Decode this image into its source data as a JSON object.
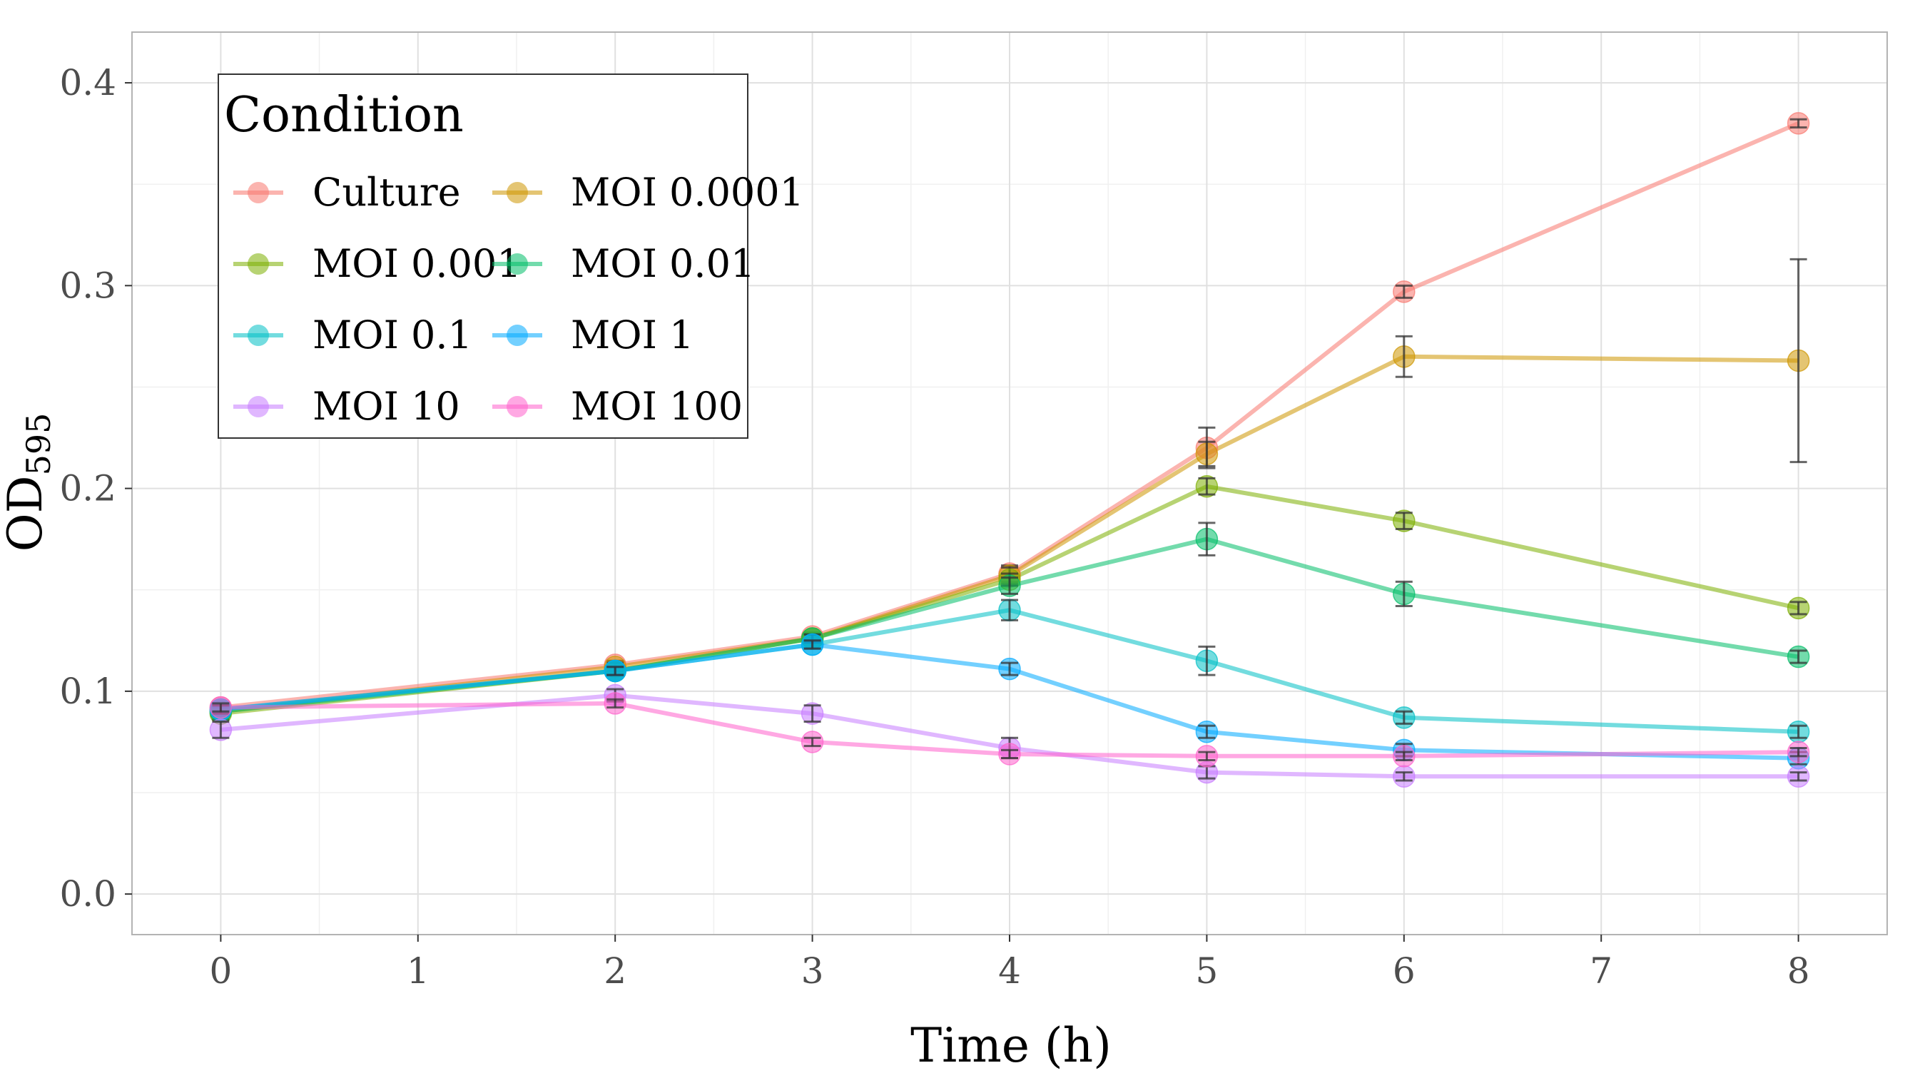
{
  "chart_data": {
    "type": "line",
    "xlabel": "Time (h)",
    "ylabel": "OD",
    "ylabel_sub": "595",
    "xlim": [
      -0.45,
      8.45
    ],
    "ylim": [
      -0.02,
      0.425
    ],
    "x_ticks": [
      0,
      1,
      2,
      3,
      4,
      5,
      6,
      7,
      8
    ],
    "y_ticks": [
      0.0,
      0.1,
      0.2,
      0.3,
      0.4
    ],
    "y_tick_labels": [
      "0.0",
      "0.1",
      "0.2",
      "0.3",
      "0.4"
    ],
    "grid": true,
    "legend": {
      "title": "Condition",
      "position": "top-left",
      "columns": 2
    },
    "x": [
      0,
      2,
      3,
      4,
      5,
      6,
      8
    ],
    "series": [
      {
        "name": "Culture",
        "color": "#F8766D",
        "values": [
          0.092,
          0.113,
          0.127,
          0.158,
          0.22,
          0.297,
          0.38
        ],
        "errors": [
          0.002,
          0.002,
          0.002,
          0.004,
          0.01,
          0.003,
          0.002
        ]
      },
      {
        "name": "MOI 0.0001",
        "color": "#CD9600",
        "values": [
          0.09,
          0.112,
          0.126,
          0.157,
          0.217,
          0.265,
          0.263
        ],
        "errors": [
          0.002,
          0.002,
          0.002,
          0.004,
          0.006,
          0.01,
          0.05
        ]
      },
      {
        "name": "MOI 0.001",
        "color": "#7CAE00",
        "values": [
          0.089,
          0.11,
          0.126,
          0.155,
          0.201,
          0.184,
          0.141
        ],
        "errors": [
          0.003,
          0.002,
          0.002,
          0.003,
          0.004,
          0.004,
          0.003
        ]
      },
      {
        "name": "MOI 0.01",
        "color": "#00BE67",
        "values": [
          0.09,
          0.11,
          0.126,
          0.152,
          0.175,
          0.148,
          0.117
        ],
        "errors": [
          0.002,
          0.002,
          0.002,
          0.004,
          0.008,
          0.006,
          0.003
        ]
      },
      {
        "name": "MOI 0.1",
        "color": "#00BFC4",
        "values": [
          0.091,
          0.11,
          0.123,
          0.14,
          0.115,
          0.087,
          0.08
        ],
        "errors": [
          0.002,
          0.002,
          0.002,
          0.005,
          0.007,
          0.003,
          0.003
        ]
      },
      {
        "name": "MOI 1",
        "color": "#00A9FF",
        "values": [
          0.091,
          0.11,
          0.123,
          0.111,
          0.08,
          0.071,
          0.067
        ],
        "errors": [
          0.002,
          0.002,
          0.002,
          0.003,
          0.003,
          0.003,
          0.003
        ]
      },
      {
        "name": "MOI 10",
        "color": "#C77CFF",
        "values": [
          0.081,
          0.098,
          0.089,
          0.072,
          0.06,
          0.058,
          0.058
        ],
        "errors": [
          0.004,
          0.003,
          0.004,
          0.005,
          0.003,
          0.002,
          0.002
        ]
      },
      {
        "name": "MOI 100",
        "color": "#FF61CC",
        "values": [
          0.092,
          0.094,
          0.075,
          0.069,
          0.068,
          0.068,
          0.07
        ],
        "errors": [
          0.002,
          0.002,
          0.002,
          0.002,
          0.002,
          0.002,
          0.002
        ]
      }
    ]
  }
}
